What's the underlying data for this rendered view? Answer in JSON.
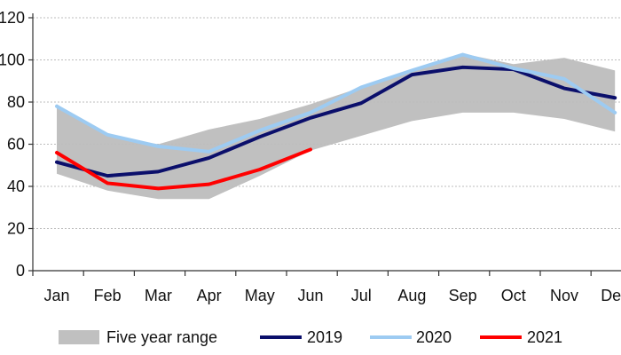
{
  "chart_data": {
    "type": "line",
    "categories": [
      "Jan",
      "Feb",
      "Mar",
      "Apr",
      "May",
      "Jun",
      "Jul",
      "Aug",
      "Sep",
      "Oct",
      "Nov",
      "Dec"
    ],
    "y_ticks": [
      "0",
      "20",
      "40",
      "60",
      "80",
      "100",
      "120"
    ],
    "y_tick_values": [
      0,
      20,
      40,
      60,
      80,
      100,
      120
    ],
    "ylim": [
      0,
      120
    ],
    "grid": "horizontal dashed",
    "legend_position": "bottom",
    "range": {
      "name": "Five year range",
      "color": "#c0c0c0",
      "low": [
        46,
        38,
        34,
        34,
        45,
        57,
        64,
        71,
        75,
        75,
        72,
        66
      ],
      "high": [
        79,
        64,
        60,
        67,
        72,
        79,
        87,
        95,
        103,
        98,
        101,
        95
      ]
    },
    "series": [
      {
        "name": "2019",
        "color": "#0b0f6b",
        "values": [
          51.5,
          45,
          47,
          53.5,
          63.5,
          72.5,
          79.5,
          93,
          96.5,
          95.5,
          86.5,
          82
        ]
      },
      {
        "name": "2020",
        "color": "#9dcbf2",
        "values": [
          78,
          64.5,
          59,
          56.5,
          66.5,
          75,
          87,
          95,
          102.5,
          96,
          91,
          75
        ]
      },
      {
        "name": "2021",
        "color": "#ff0000",
        "values": [
          56,
          41.5,
          39,
          41,
          48,
          57.5,
          null,
          null,
          null,
          null,
          null,
          null
        ]
      }
    ]
  }
}
